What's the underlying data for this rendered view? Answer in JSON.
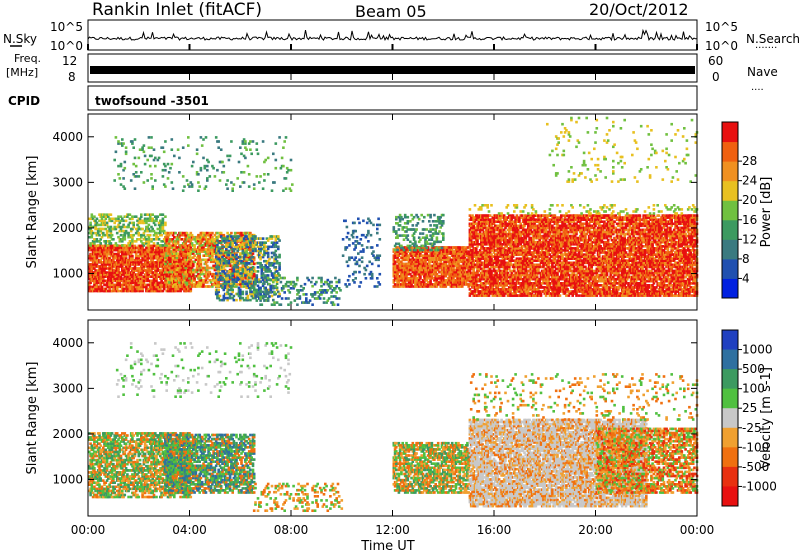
{
  "header": {
    "station": "Rankin Inlet (fitACF)",
    "beam": "Beam 05",
    "date": "20/Oct/2012"
  },
  "strip_labels": {
    "nsky": "N.Sky",
    "nsearch": "N.Search",
    "nsearch_dots": "·······",
    "freq_line1": "Freq.",
    "freq_line2": "[MHz]",
    "nave": "Nave",
    "nave_dots": "····",
    "cpid": "CPID",
    "cpid_value": "twofsound -3501"
  },
  "colors": {
    "power_scale": [
      "#0020e0",
      "#2050b0",
      "#3a7a80",
      "#3c9a60",
      "#70c040",
      "#e8c020",
      "#f09020",
      "#f06010",
      "#e81010"
    ],
    "velocity_scale": [
      "#2040c0",
      "#2f70a0",
      "#3c9a60",
      "#50c040",
      "#c8c8c8",
      "#f0a030",
      "#f07010",
      "#e83010",
      "#e81010"
    ]
  },
  "chart_data": [
    {
      "type": "line",
      "panel": "noise",
      "left_label": "N.Sky",
      "right_label": "N.Search",
      "left_ticks": [
        "10^5",
        "10^0"
      ],
      "right_ticks": [
        "10^5",
        "10^0"
      ]
    },
    {
      "type": "line",
      "panel": "frequency / nave",
      "left_ticks": [
        "12",
        "8"
      ],
      "right_ticks": [
        "60",
        "0"
      ]
    },
    {
      "type": "heatmap",
      "panel": "power",
      "ylabel": "Slant Range [km]",
      "ylim": [
        200,
        4500
      ],
      "yticks": [
        1000,
        2000,
        3000,
        4000
      ],
      "xlim_hours": [
        0,
        24
      ],
      "colorbar_title": "Power [dB]",
      "colorbar_ticks": [
        4,
        8,
        12,
        16,
        20,
        24,
        28
      ],
      "colorbar_range": [
        0,
        32
      ]
    },
    {
      "type": "heatmap",
      "panel": "velocity",
      "ylabel": "Slant Range [km]",
      "ylim": [
        200,
        4500
      ],
      "yticks": [
        1000,
        2000,
        3000,
        4000
      ],
      "xlabel": "Time UT",
      "xticks": [
        "00:00",
        "04:00",
        "08:00",
        "12:00",
        "16:00",
        "20:00",
        "00:00"
      ],
      "colorbar_title": "Velocity [m s-1]",
      "colorbar_ticks": [
        "1000",
        "500",
        "100",
        "25",
        "-25",
        "-100",
        "-500",
        "-1000"
      ]
    }
  ]
}
